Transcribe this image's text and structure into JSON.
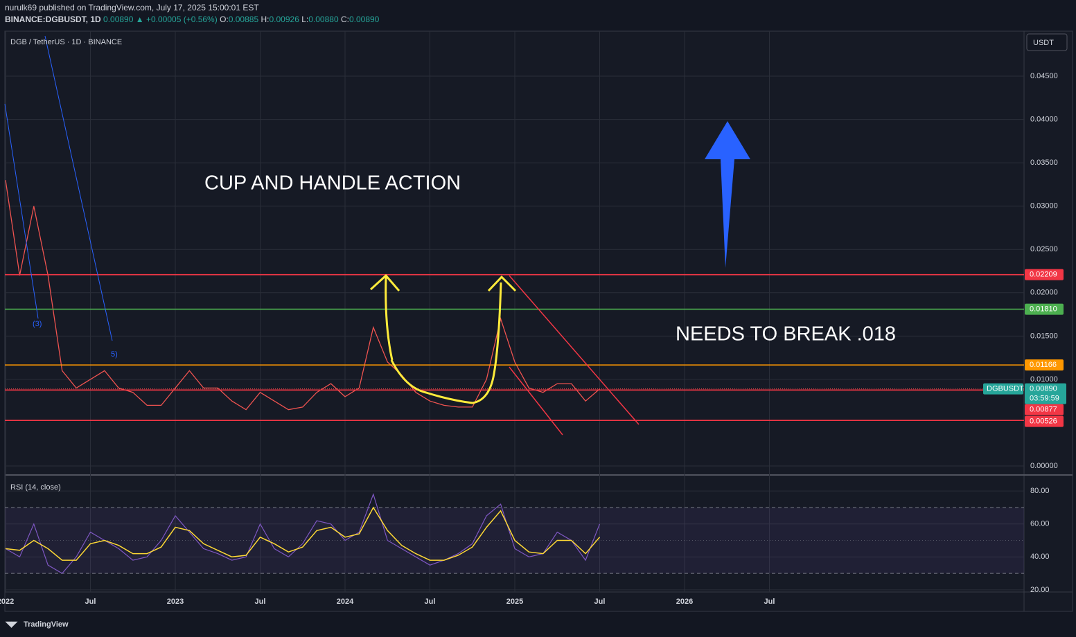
{
  "header": {
    "publisher": "nurulk69 published on TradingView.com, July 17, 2025 15:00:01 EST",
    "symbol": "BINANCE:DGBUSDT, 1D",
    "last": "0.00890",
    "change": "▲ +0.00005 (+0.56%)",
    "ohlc": [
      {
        "label": "O:",
        "value": "0.00885"
      },
      {
        "label": "H:",
        "value": "0.00926"
      },
      {
        "label": "L:",
        "value": "0.00880"
      },
      {
        "label": "C:",
        "value": "0.00890"
      }
    ]
  },
  "chart_data": [
    {
      "type": "line",
      "title": "DGB / TetherUS · 1D · BINANCE",
      "currency": "USDT",
      "x": [
        "2022-01",
        "2022-02",
        "2022-03",
        "2022-04",
        "2022-05",
        "2022-06",
        "2022-07",
        "2022-08",
        "2022-09",
        "2022-10",
        "2022-11",
        "2022-12",
        "2023-01",
        "2023-02",
        "2023-03",
        "2023-04",
        "2023-05",
        "2023-06",
        "2023-07",
        "2023-08",
        "2023-09",
        "2023-10",
        "2023-11",
        "2023-12",
        "2024-01",
        "2024-02",
        "2024-03",
        "2024-04",
        "2024-05",
        "2024-06",
        "2024-07",
        "2024-08",
        "2024-09",
        "2024-10",
        "2024-11",
        "2024-12",
        "2025-01",
        "2025-02",
        "2025-03",
        "2025-04",
        "2025-05",
        "2025-06",
        "2025-07"
      ],
      "series": [
        {
          "name": "DGBUSDT",
          "color": "#ef5350",
          "values": [
            0.033,
            0.022,
            0.03,
            0.022,
            0.011,
            0.009,
            0.01,
            0.011,
            0.009,
            0.0085,
            0.007,
            0.007,
            0.009,
            0.011,
            0.009,
            0.009,
            0.0075,
            0.0065,
            0.0085,
            0.0075,
            0.0065,
            0.0068,
            0.0085,
            0.0095,
            0.008,
            0.009,
            0.016,
            0.012,
            0.0105,
            0.0085,
            0.0075,
            0.007,
            0.0068,
            0.0068,
            0.01,
            0.017,
            0.012,
            0.009,
            0.0085,
            0.0095,
            0.0095,
            0.0075,
            0.0089
          ]
        }
      ],
      "last_price": {
        "value": 0.0089,
        "label": "0.00890"
      },
      "countdown": "03:59:59",
      "levels": [
        {
          "value": 0.02209,
          "label": "0.02209",
          "color": "#f23645"
        },
        {
          "value": 0.0181,
          "label": "0.01810",
          "color": "#4caf50"
        },
        {
          "value": 0.01166,
          "label": "0.01166",
          "color": "#ff9800"
        },
        {
          "value": 0.00877,
          "label": "0.00877",
          "color": "#f23645"
        },
        {
          "value": 0.00526,
          "label": "0.00526",
          "color": "#f23645"
        }
      ],
      "xlim": [
        "2022-01",
        "2028-01"
      ],
      "xticks": [
        {
          "value": "2022-01",
          "label": "2022"
        },
        {
          "value": "2022-07",
          "label": "Jul"
        },
        {
          "value": "2023-01",
          "label": "2023"
        },
        {
          "value": "2023-07",
          "label": "Jul"
        },
        {
          "value": "2024-01",
          "label": "2024"
        },
        {
          "value": "2024-07",
          "label": "Jul"
        },
        {
          "value": "2025-01",
          "label": "2025"
        },
        {
          "value": "2025-07",
          "label": "Jul"
        },
        {
          "value": "2026-01",
          "label": "2026"
        },
        {
          "value": "2026-07",
          "label": "Jul"
        }
      ],
      "ylim": [
        -0.00096,
        0.0502
      ],
      "yticks": [
        {
          "value": 0,
          "label": "0.00000"
        },
        {
          "value": 0.01,
          "label": "0.01000"
        },
        {
          "value": 0.015,
          "label": "0.01500"
        },
        {
          "value": 0.02,
          "label": "0.02000"
        },
        {
          "value": 0.025,
          "label": "0.02500"
        },
        {
          "value": 0.03,
          "label": "0.03000"
        },
        {
          "value": 0.035,
          "label": "0.03500"
        },
        {
          "value": 0.04,
          "label": "0.04000"
        },
        {
          "value": 0.045,
          "label": "0.04500"
        }
      ],
      "grid": true,
      "annotations": [
        "CUP AND HANDLE ACTION",
        "NEEDS TO BREAK .018",
        "(3)",
        "5)"
      ]
    },
    {
      "type": "line",
      "title": "RSI (14, close)",
      "x": [
        "2022-01",
        "2022-02",
        "2022-03",
        "2022-04",
        "2022-05",
        "2022-06",
        "2022-07",
        "2022-08",
        "2022-09",
        "2022-10",
        "2022-11",
        "2022-12",
        "2023-01",
        "2023-02",
        "2023-03",
        "2023-04",
        "2023-05",
        "2023-06",
        "2023-07",
        "2023-08",
        "2023-09",
        "2023-10",
        "2023-11",
        "2023-12",
        "2024-01",
        "2024-02",
        "2024-03",
        "2024-04",
        "2024-05",
        "2024-06",
        "2024-07",
        "2024-08",
        "2024-09",
        "2024-10",
        "2024-11",
        "2024-12",
        "2025-01",
        "2025-02",
        "2025-03",
        "2025-04",
        "2025-05",
        "2025-06",
        "2025-07"
      ],
      "series": [
        {
          "color": "#7e57c2",
          "values": [
            45,
            40,
            60,
            35,
            30,
            40,
            55,
            50,
            45,
            38,
            40,
            50,
            65,
            55,
            45,
            42,
            38,
            40,
            60,
            45,
            40,
            48,
            62,
            60,
            50,
            55,
            78,
            50,
            45,
            40,
            35,
            38,
            42,
            48,
            65,
            72,
            45,
            40,
            42,
            55,
            50,
            38,
            60
          ]
        },
        {
          "color": "#fdd835",
          "values": [
            45,
            44,
            50,
            45,
            38,
            38,
            48,
            50,
            47,
            42,
            42,
            46,
            58,
            56,
            48,
            44,
            40,
            41,
            52,
            48,
            43,
            46,
            56,
            58,
            52,
            54,
            70,
            56,
            47,
            42,
            38,
            38,
            41,
            46,
            58,
            68,
            50,
            43,
            42,
            50,
            50,
            42,
            52
          ]
        }
      ],
      "xlim": [
        "2022-01",
        "2028-01"
      ],
      "ylim": [
        18.7,
        88.9
      ],
      "yticks": [
        {
          "value": 20,
          "label": "20.00"
        },
        {
          "value": 40,
          "label": "40.00"
        },
        {
          "value": 60,
          "label": "60.00"
        },
        {
          "value": 80,
          "label": "80.00"
        }
      ],
      "band": [
        30,
        70
      ],
      "midline": 50
    }
  ],
  "footer": {
    "brand": "TradingView"
  }
}
